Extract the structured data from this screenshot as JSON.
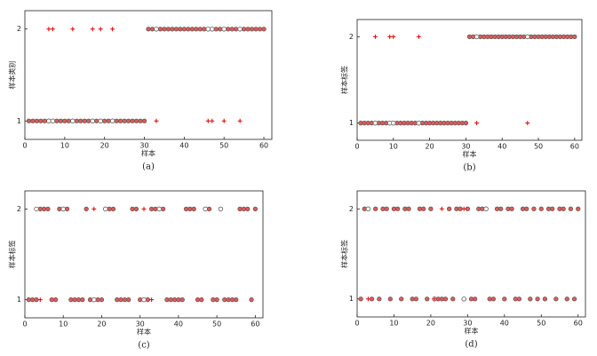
{
  "chart_data": [
    {
      "type": "scatter",
      "caption": "(a)",
      "x_label": "样本",
      "y_label": "样本类别",
      "xlim": [
        0,
        62
      ],
      "ylim": [
        0.8,
        2.2
      ],
      "xticks": [
        0,
        10,
        20,
        30,
        40,
        50,
        60
      ],
      "yticks": [
        1,
        2
      ],
      "series": [
        {
          "marker": "circle",
          "color": "#e05a5a",
          "edgecolor": "#555",
          "x": [
            1,
            2,
            3,
            4,
            5,
            6,
            7,
            8,
            9,
            10,
            11,
            12,
            13,
            14,
            15,
            16,
            17,
            18,
            19,
            20,
            21,
            22,
            23,
            24,
            25,
            26,
            27,
            28,
            29,
            30,
            31,
            32,
            33,
            34,
            35,
            36,
            37,
            38,
            39,
            40,
            41,
            42,
            43,
            44,
            45,
            46,
            47,
            48,
            49,
            50,
            51,
            52,
            53,
            54,
            55,
            56,
            57,
            58,
            59,
            60
          ],
          "values": [
            1,
            1,
            1,
            1,
            1,
            1,
            1,
            1,
            1,
            1,
            1,
            1,
            1,
            1,
            1,
            1,
            1,
            1,
            1,
            1,
            1,
            1,
            1,
            1,
            1,
            1,
            1,
            1,
            1,
            1,
            2,
            2,
            2,
            2,
            2,
            2,
            2,
            2,
            2,
            2,
            2,
            2,
            2,
            2,
            2,
            2,
            2,
            2,
            2,
            2,
            2,
            2,
            2,
            2,
            2,
            2,
            2,
            2,
            2,
            2
          ]
        },
        {
          "marker": "circle",
          "color": "#ffffff",
          "edgecolor": "#555",
          "x": [
            6,
            7,
            12,
            17,
            19,
            22,
            33,
            46,
            47,
            50,
            54
          ],
          "values": [
            1,
            1,
            1,
            1,
            1,
            1,
            2,
            2,
            2,
            2,
            2
          ]
        },
        {
          "marker": "plus",
          "color": "#e00000",
          "x": [
            6,
            7,
            12,
            17,
            19,
            22,
            33,
            46,
            47,
            50,
            54
          ],
          "values": [
            2,
            2,
            2,
            2,
            2,
            2,
            1,
            1,
            1,
            1,
            1
          ]
        }
      ]
    },
    {
      "type": "scatter",
      "caption": "(b)",
      "x_label": "样本",
      "y_label": "样本标签",
      "xlim": [
        0,
        62
      ],
      "ylim": [
        0.8,
        2.2
      ],
      "xticks": [
        0,
        10,
        20,
        30,
        40,
        50,
        60
      ],
      "yticks": [
        1,
        2
      ],
      "series": [
        {
          "marker": "circle",
          "color": "#e05a5a",
          "edgecolor": "#555",
          "x": [
            1,
            2,
            3,
            4,
            5,
            6,
            7,
            8,
            9,
            10,
            11,
            12,
            13,
            14,
            15,
            16,
            17,
            18,
            19,
            20,
            21,
            22,
            23,
            24,
            25,
            26,
            27,
            28,
            29,
            30,
            31,
            32,
            33,
            34,
            35,
            36,
            37,
            38,
            39,
            40,
            41,
            42,
            43,
            44,
            45,
            46,
            47,
            48,
            49,
            50,
            51,
            52,
            53,
            54,
            55,
            56,
            57,
            58,
            59,
            60
          ],
          "values": [
            1,
            1,
            1,
            1,
            1,
            1,
            1,
            1,
            1,
            1,
            1,
            1,
            1,
            1,
            1,
            1,
            1,
            1,
            1,
            1,
            1,
            1,
            1,
            1,
            1,
            1,
            1,
            1,
            1,
            1,
            2,
            2,
            2,
            2,
            2,
            2,
            2,
            2,
            2,
            2,
            2,
            2,
            2,
            2,
            2,
            2,
            2,
            2,
            2,
            2,
            2,
            2,
            2,
            2,
            2,
            2,
            2,
            2,
            2,
            2
          ]
        },
        {
          "marker": "circle",
          "color": "#ffffff",
          "edgecolor": "#555",
          "x": [
            5,
            9,
            10,
            17,
            33,
            47
          ],
          "values": [
            1,
            1,
            1,
            1,
            2,
            2
          ]
        },
        {
          "marker": "plus",
          "color": "#e00000",
          "x": [
            5,
            9,
            10,
            17,
            33,
            47
          ],
          "values": [
            2,
            2,
            2,
            2,
            1,
            1
          ]
        }
      ]
    },
    {
      "type": "scatter",
      "caption": "(c)",
      "x_label": "样本",
      "y_label": "样本标签",
      "xlim": [
        0,
        62
      ],
      "ylim": [
        0.8,
        2.2
      ],
      "xticks": [
        0,
        10,
        20,
        30,
        40,
        50,
        60
      ],
      "yticks": [
        1,
        2
      ],
      "series": [
        {
          "marker": "circle",
          "color": "#e05a5a",
          "edgecolor": "#555",
          "x": [
            1,
            2,
            3,
            4,
            5,
            6,
            7,
            8,
            9,
            10,
            11,
            12,
            13,
            14,
            15,
            16,
            17,
            18,
            19,
            20,
            21,
            22,
            23,
            24,
            25,
            26,
            27,
            28,
            29,
            30,
            31,
            32,
            33,
            34,
            35,
            36,
            37,
            38,
            39,
            40,
            41,
            42,
            43,
            44,
            45,
            46,
            47,
            48,
            49,
            50,
            51,
            52,
            53,
            54,
            55,
            56,
            57,
            58,
            59,
            60
          ],
          "values": [
            1,
            1,
            1,
            2,
            2,
            2,
            1,
            1,
            2,
            2,
            2,
            1,
            1,
            1,
            1,
            2,
            1,
            1,
            1,
            1,
            2,
            2,
            2,
            1,
            1,
            1,
            1,
            2,
            2,
            1,
            1,
            1,
            2,
            2,
            2,
            2,
            1,
            1,
            1,
            1,
            1,
            2,
            2,
            2,
            1,
            1,
            2,
            2,
            1,
            1,
            2,
            1,
            1,
            1,
            1,
            2,
            2,
            2,
            1,
            2
          ]
        },
        {
          "marker": "circle",
          "color": "#ffffff",
          "edgecolor": "#555",
          "x": [
            3,
            10,
            21,
            35,
            47,
            51,
            18,
            31
          ],
          "values": [
            2,
            2,
            2,
            2,
            2,
            2,
            1,
            1
          ]
        },
        {
          "marker": "plus",
          "color": "#e00000",
          "x": [
            18,
            31,
            4,
            33
          ],
          "values": [
            2,
            2,
            1,
            1
          ]
        }
      ]
    },
    {
      "type": "scatter",
      "caption": "(d)",
      "x_label": "样本",
      "y_label": "样本标签",
      "xlim": [
        0,
        62
      ],
      "ylim": [
        0.8,
        2.2
      ],
      "xticks": [
        0,
        10,
        20,
        30,
        40,
        50,
        60
      ],
      "yticks": [
        1,
        2
      ],
      "series": [
        {
          "marker": "circle",
          "color": "#e05a5a",
          "edgecolor": "#555",
          "x": [
            1,
            2,
            3,
            4,
            5,
            6,
            7,
            8,
            9,
            10,
            11,
            12,
            13,
            14,
            15,
            16,
            17,
            18,
            19,
            20,
            21,
            22,
            23,
            24,
            25,
            26,
            27,
            28,
            29,
            30,
            31,
            32,
            33,
            34,
            35,
            36,
            37,
            38,
            39,
            40,
            41,
            42,
            43,
            44,
            45,
            46,
            47,
            48,
            49,
            50,
            51,
            52,
            53,
            54,
            55,
            56,
            57,
            58,
            59,
            60
          ],
          "values": [
            1,
            2,
            2,
            1,
            2,
            1,
            2,
            2,
            1,
            2,
            2,
            1,
            2,
            2,
            1,
            1,
            2,
            2,
            1,
            2,
            1,
            1,
            1,
            1,
            2,
            1,
            2,
            2,
            1,
            2,
            1,
            1,
            2,
            2,
            2,
            1,
            1,
            2,
            2,
            1,
            2,
            2,
            1,
            1,
            2,
            2,
            1,
            2,
            1,
            2,
            1,
            2,
            2,
            1,
            2,
            2,
            1,
            2,
            1,
            2
          ]
        },
        {
          "marker": "circle",
          "color": "#ffffff",
          "edgecolor": "#555",
          "x": [
            21,
            29,
            3,
            35
          ],
          "values": [
            1,
            1,
            2,
            2
          ]
        },
        {
          "marker": "plus",
          "color": "#e00000",
          "x": [
            23,
            29,
            3,
            21
          ],
          "values": [
            2,
            2,
            1,
            1
          ]
        }
      ]
    }
  ]
}
